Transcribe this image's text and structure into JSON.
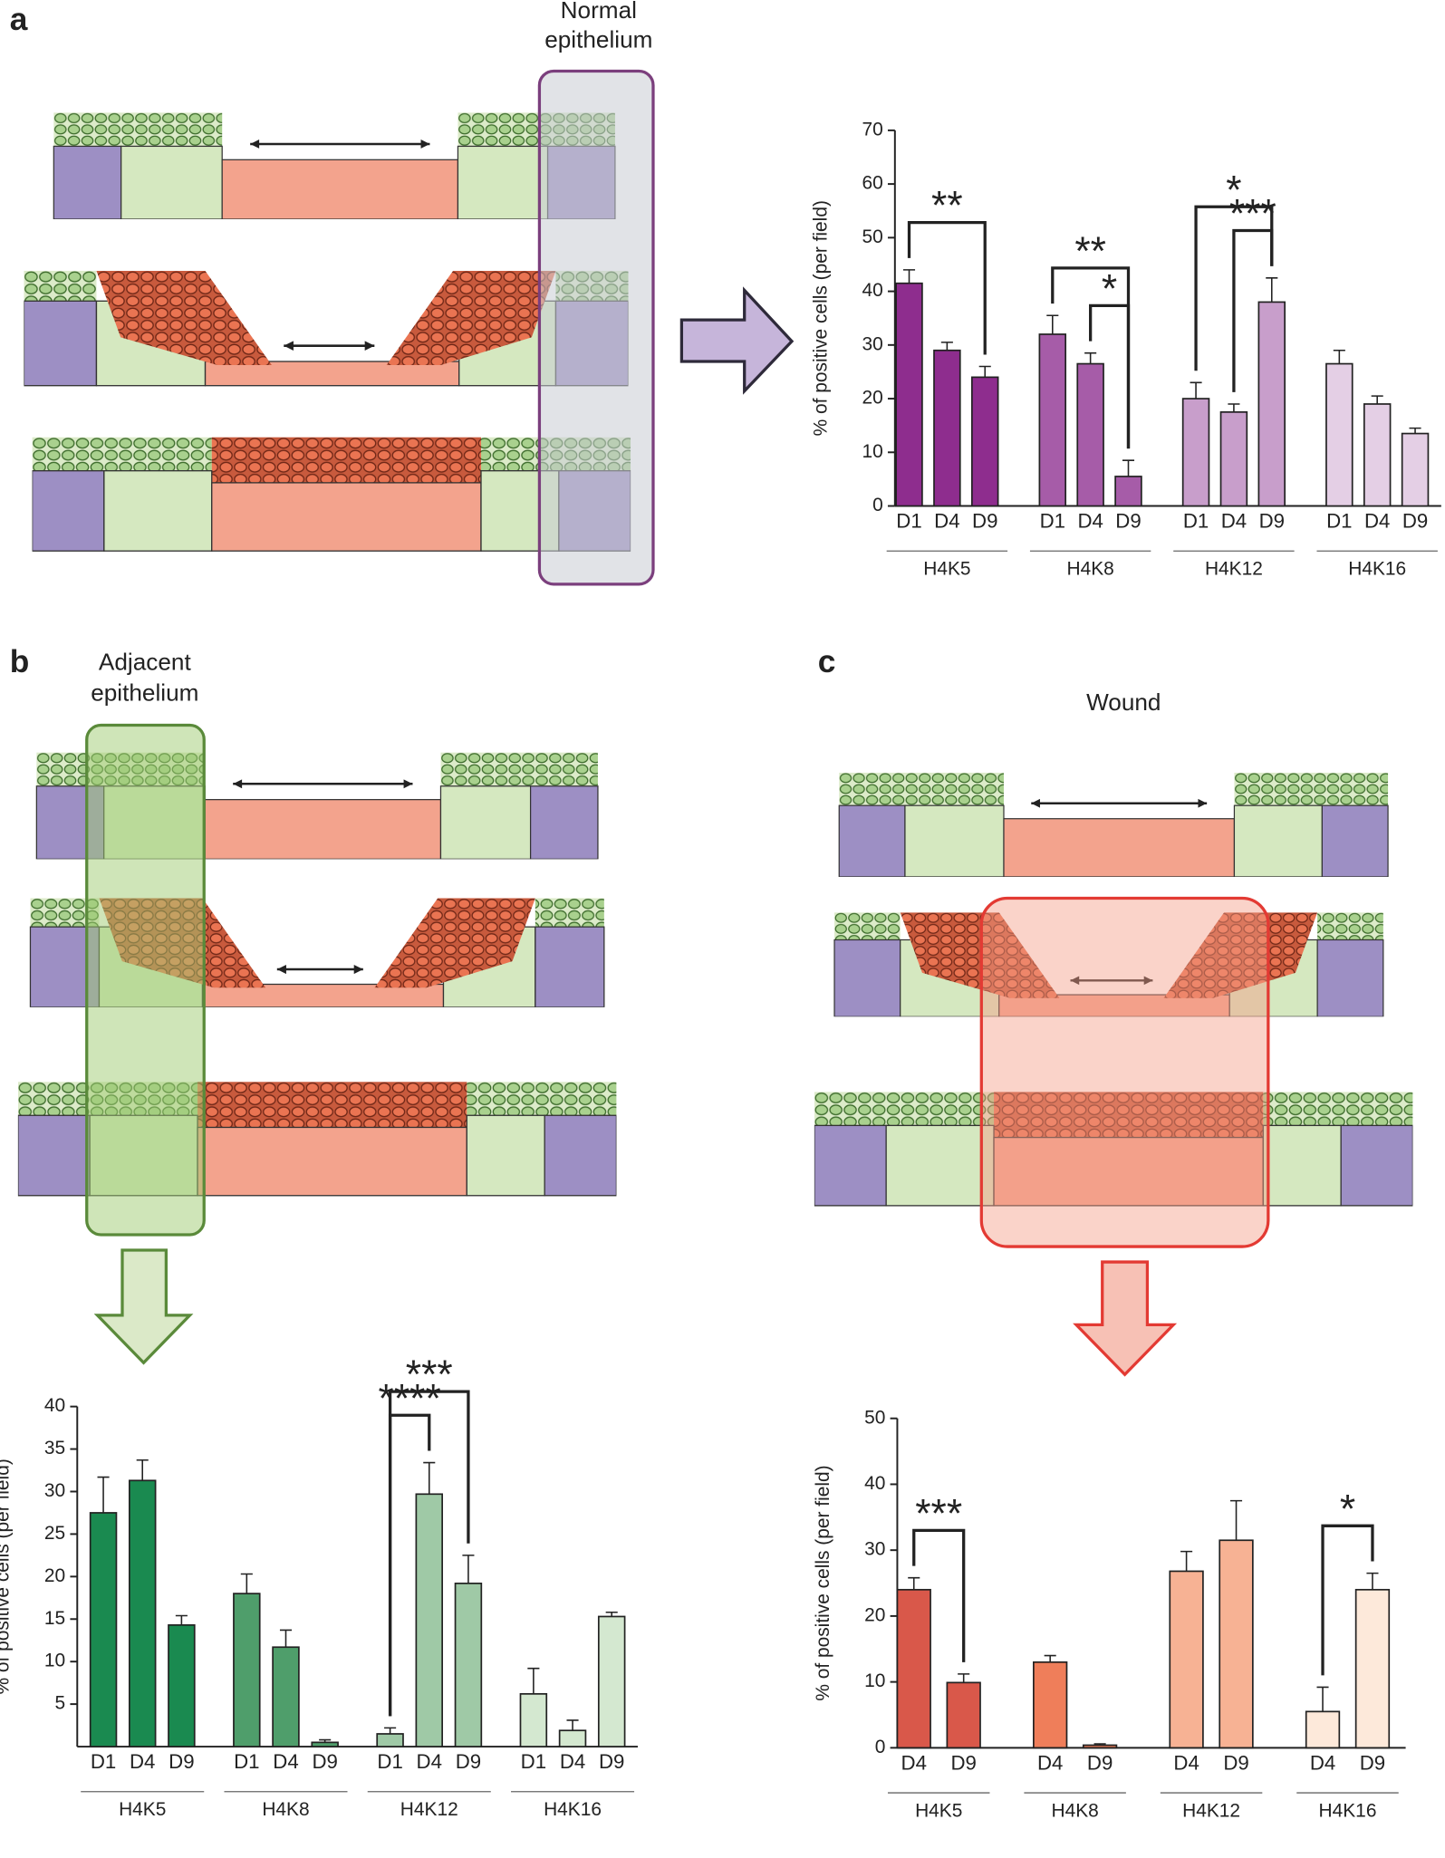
{
  "panels": [
    {
      "letter": "a",
      "region_label": [
        "Normal",
        "epithelium"
      ]
    },
    {
      "letter": "b",
      "region_label": [
        "Adjacent",
        "epithelium"
      ]
    },
    {
      "letter": "c",
      "region_label": [
        "Wound"
      ]
    }
  ],
  "chart_data": [
    {
      "type": "bar",
      "y_label": "% of positive cells (per field)",
      "categories": [
        "D1",
        "D4",
        "D9"
      ],
      "ylim": [
        0,
        70
      ],
      "yticks": [
        0,
        10,
        20,
        30,
        40,
        50,
        60,
        70
      ],
      "series": [
        {
          "name": "H4K5",
          "color": "#8e2d8e",
          "values": [
            41.5,
            29,
            24
          ],
          "errors": [
            2.5,
            1.5,
            2
          ]
        },
        {
          "name": "H4K8",
          "color": "#a65ca8",
          "values": [
            32,
            26.5,
            5.5
          ],
          "errors": [
            3.5,
            2,
            3
          ]
        },
        {
          "name": "H4K12",
          "color": "#c89ecb",
          "values": [
            20,
            17.5,
            38
          ],
          "errors": [
            3,
            1.5,
            4.5
          ]
        },
        {
          "name": "H4K16",
          "color": "#e4cfe5",
          "values": [
            26.5,
            19,
            13.5
          ],
          "errors": [
            2.5,
            1.5,
            1
          ]
        }
      ],
      "significance": [
        {
          "label": "**",
          "series": 0,
          "bars": [
            0,
            2
          ]
        },
        {
          "label": "*",
          "series": 1,
          "bars": [
            1,
            2
          ]
        },
        {
          "label": "**",
          "series": 1,
          "bars": [
            0,
            2
          ]
        },
        {
          "label": "***",
          "series": 2,
          "bars": [
            1,
            2
          ]
        },
        {
          "label": "*",
          "series": 2,
          "bars": [
            0,
            2
          ]
        }
      ]
    },
    {
      "type": "bar",
      "y_label": "% of positive cells (per field)",
      "categories": [
        "D1",
        "D4",
        "D9"
      ],
      "ylim": [
        0,
        40
      ],
      "yticks": [
        5,
        10,
        15,
        20,
        25,
        30,
        35,
        40
      ],
      "series": [
        {
          "name": "H4K5",
          "color": "#1a8a50",
          "values": [
            27.5,
            31.3,
            14.3
          ],
          "errors": [
            4.2,
            2.4,
            1.1
          ]
        },
        {
          "name": "H4K8",
          "color": "#4f9e6b",
          "values": [
            18,
            11.7,
            0.5
          ],
          "errors": [
            2.3,
            2,
            0.3
          ]
        },
        {
          "name": "H4K12",
          "color": "#9fc9a6",
          "values": [
            1.5,
            29.7,
            19.2
          ],
          "errors": [
            0.7,
            3.7,
            3.3
          ]
        },
        {
          "name": "H4K16",
          "color": "#d4e8d0",
          "values": [
            6.2,
            1.9,
            15.3
          ],
          "errors": [
            3,
            1.2,
            0.5
          ]
        }
      ],
      "significance": [
        {
          "label": "****",
          "series": 2,
          "bars": [
            0,
            1
          ]
        },
        {
          "label": "***",
          "series": 2,
          "bars": [
            0,
            2
          ]
        }
      ]
    },
    {
      "type": "bar",
      "y_label": "% of positive cells (per field)",
      "categories": [
        "D4",
        "D9"
      ],
      "ylim": [
        0,
        50
      ],
      "yticks": [
        0,
        10,
        20,
        30,
        40,
        50
      ],
      "series": [
        {
          "name": "H4K5",
          "color": "#d9584a",
          "values": [
            24,
            9.9
          ],
          "errors": [
            1.8,
            1.3
          ]
        },
        {
          "name": "H4K8",
          "color": "#ef7e5a",
          "values": [
            13,
            0.4
          ],
          "errors": [
            1,
            0.2
          ]
        },
        {
          "name": "H4K12",
          "color": "#f7b294",
          "values": [
            26.8,
            31.5
          ],
          "errors": [
            3,
            6
          ]
        },
        {
          "name": "H4K16",
          "color": "#fde9da",
          "values": [
            5.5,
            24
          ],
          "errors": [
            3.7,
            2.5
          ]
        }
      ],
      "significance": [
        {
          "label": "***",
          "series": 0,
          "bars": [
            0,
            1
          ]
        },
        {
          "label": "*",
          "series": 3,
          "bars": [
            0,
            1
          ]
        }
      ]
    }
  ]
}
